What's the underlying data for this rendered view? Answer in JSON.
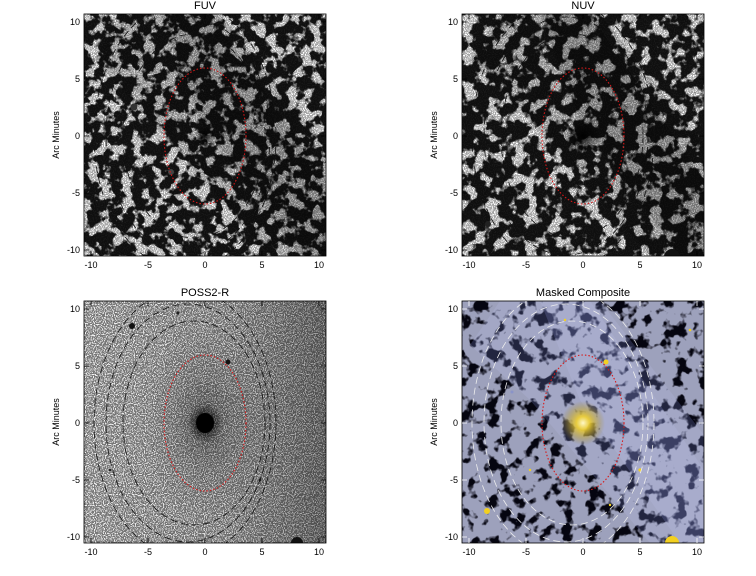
{
  "figure": {
    "panels": [
      {
        "title": "FUV",
        "ylabel": "Arc Minutes",
        "ticks": [
          "-10",
          "-5",
          "0",
          "5",
          "10"
        ],
        "style": "fuv"
      },
      {
        "title": "NUV",
        "ylabel": "Arc Minutes",
        "ticks": [
          "-10",
          "-5",
          "0",
          "5",
          "10"
        ],
        "style": "nuv"
      },
      {
        "title": "POSS2-R",
        "ylabel": "Arc Minutes",
        "ticks": [
          "-10",
          "-5",
          "0",
          "5",
          "10"
        ],
        "style": "poss"
      },
      {
        "title": "Masked Composite",
        "ylabel": "Arc Minutes",
        "ticks": [
          "-10",
          "-5",
          "0",
          "5",
          "10"
        ],
        "style": "composite"
      }
    ],
    "axis_range": [
      -10.5,
      10.5
    ],
    "colors": {
      "red_ellipse": "#d81818",
      "dashed_light": "#111111",
      "dashed_dark": "#eeeeee",
      "composite_bg": "#050510",
      "composite_star": "#f3d020",
      "composite_cirrus": "#8a93c8"
    },
    "ellipses": {
      "red": {
        "rx": 3.6,
        "ry": 6.0
      },
      "dashed": [
        {
          "cx": -1.0,
          "rx": 6.2,
          "ry": 9.0
        },
        {
          "cx": -1.5,
          "rx": 7.2,
          "ry": 10.5
        },
        {
          "cx": -1.8,
          "rx": 8.0,
          "ry": 11.8
        }
      ]
    }
  }
}
